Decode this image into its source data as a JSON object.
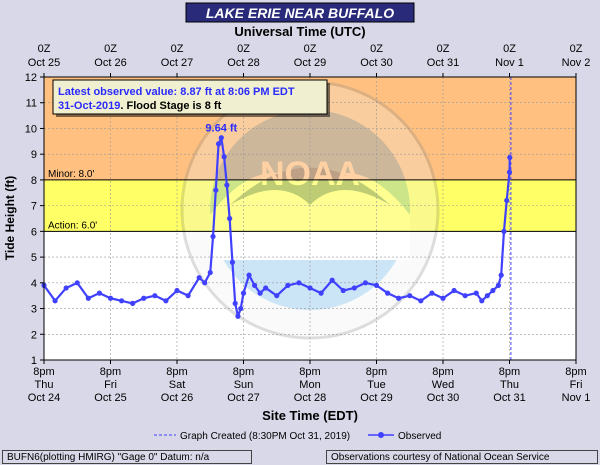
{
  "title": "LAKE ERIE NEAR BUFFALO",
  "top_axis_title": "Universal Time (UTC)",
  "bottom_axis_title": "Site Time (EDT)",
  "y_axis_title": "Tide Height (ft)",
  "info_box": {
    "line1": "Latest observed value: 8.87 ft at 8:06 PM EDT",
    "line2_date": "31-Oct-2019",
    "line2_flood": "Flood Stage is 8 ft"
  },
  "peak_label": "9.64 ft",
  "watermark": "NOAA NATIONAL OCEANIC AND ATMOSPHERIC ADMINISTRATION U.S. DEPARTMENT OF COMMERCE",
  "legend": {
    "graph_created": "Graph Created (8:30PM Oct 31, 2019)",
    "observed": "Observed"
  },
  "footer": {
    "left": "BUFN6(plotting HMIRG) \"Gage 0\" Datum: n/a",
    "right": "Observations courtesy of National Ocean Service"
  },
  "colors": {
    "moderate_band": "#ffc080",
    "minor_band": "#ffff66",
    "observed": "#4040ff",
    "background": "#d8d8e8",
    "title_bar": "#2a2a7a"
  },
  "chart_data": {
    "type": "line",
    "title": "LAKE ERIE NEAR BUFFALO",
    "xlabel": "Site Time (EDT)",
    "x2label": "Universal Time (UTC)",
    "ylabel": "Tide Height (ft)",
    "ylim": [
      1,
      12
    ],
    "yticks": [
      1,
      2,
      3,
      4,
      5,
      6,
      7,
      8,
      9,
      10,
      11,
      12
    ],
    "xlim": [
      "2019-10-24 20:00 EDT",
      "2019-11-01 20:00 EDT"
    ],
    "bottom_ticks": [
      {
        "line1": "8pm",
        "line2": "Thu",
        "line3": "Oct 24"
      },
      {
        "line1": "8pm",
        "line2": "Fri",
        "line3": "Oct 25"
      },
      {
        "line1": "8pm",
        "line2": "Sat",
        "line3": "Oct 26"
      },
      {
        "line1": "8pm",
        "line2": "Sun",
        "line3": "Oct 27"
      },
      {
        "line1": "8pm",
        "line2": "Mon",
        "line3": "Oct 28"
      },
      {
        "line1": "8pm",
        "line2": "Tue",
        "line3": "Oct 29"
      },
      {
        "line1": "8pm",
        "line2": "Wed",
        "line3": "Oct 30"
      },
      {
        "line1": "8pm",
        "line2": "Thu",
        "line3": "Oct 31"
      },
      {
        "line1": "8pm",
        "line2": "Fri",
        "line3": "Nov 1"
      }
    ],
    "top_ticks": [
      {
        "line1": "0Z",
        "line2": "Oct 25"
      },
      {
        "line1": "0Z",
        "line2": "Oct 26"
      },
      {
        "line1": "0Z",
        "line2": "Oct 27"
      },
      {
        "line1": "0Z",
        "line2": "Oct 28"
      },
      {
        "line1": "0Z",
        "line2": "Oct 29"
      },
      {
        "line1": "0Z",
        "line2": "Oct 30"
      },
      {
        "line1": "0Z",
        "line2": "Oct 31"
      },
      {
        "line1": "0Z",
        "line2": "Nov  1"
      },
      {
        "line1": "0Z",
        "line2": "Nov  2"
      }
    ],
    "thresholds": [
      {
        "label": "Minor: 8.0'",
        "value": 8.0
      },
      {
        "label": "Action: 6.0'",
        "value": 6.0
      }
    ],
    "bands": [
      {
        "from": 8,
        "to": 12,
        "color": "#ffc080"
      },
      {
        "from": 6,
        "to": 8,
        "color": "#ffff66"
      }
    ],
    "graph_created_at": "2019-10-31 20:30 EDT",
    "series": [
      {
        "name": "Observed",
        "color": "#4040ff",
        "x": [
          "2019-10-24 20:00",
          "2019-10-25 00:00",
          "2019-10-25 04:00",
          "2019-10-25 08:00",
          "2019-10-25 12:00",
          "2019-10-25 16:00",
          "2019-10-25 20:00",
          "2019-10-26 00:00",
          "2019-10-26 04:00",
          "2019-10-26 08:00",
          "2019-10-26 12:00",
          "2019-10-26 16:00",
          "2019-10-26 20:00",
          "2019-10-27 00:00",
          "2019-10-27 04:00",
          "2019-10-27 06:00",
          "2019-10-27 08:00",
          "2019-10-27 09:00",
          "2019-10-27 10:00",
          "2019-10-27 11:00",
          "2019-10-27 12:00",
          "2019-10-27 13:00",
          "2019-10-27 14:00",
          "2019-10-27 15:00",
          "2019-10-27 16:00",
          "2019-10-27 17:00",
          "2019-10-27 18:00",
          "2019-10-27 19:00",
          "2019-10-27 20:00",
          "2019-10-27 22:00",
          "2019-10-28 00:00",
          "2019-10-28 02:00",
          "2019-10-28 04:00",
          "2019-10-28 08:00",
          "2019-10-28 12:00",
          "2019-10-28 16:00",
          "2019-10-28 20:00",
          "2019-10-29 00:00",
          "2019-10-29 04:00",
          "2019-10-29 08:00",
          "2019-10-29 12:00",
          "2019-10-29 16:00",
          "2019-10-29 20:00",
          "2019-10-30 00:00",
          "2019-10-30 04:00",
          "2019-10-30 08:00",
          "2019-10-30 12:00",
          "2019-10-30 16:00",
          "2019-10-30 20:00",
          "2019-10-31 00:00",
          "2019-10-31 04:00",
          "2019-10-31 08:00",
          "2019-10-31 10:00",
          "2019-10-31 12:00",
          "2019-10-31 14:00",
          "2019-10-31 16:00",
          "2019-10-31 17:00",
          "2019-10-31 18:00",
          "2019-10-31 19:00",
          "2019-10-31 20:00",
          "2019-10-31 20:06"
        ],
        "values": [
          3.9,
          3.3,
          3.8,
          4.0,
          3.4,
          3.6,
          3.4,
          3.3,
          3.2,
          3.4,
          3.5,
          3.3,
          3.7,
          3.5,
          4.2,
          4.0,
          4.4,
          5.8,
          7.6,
          9.4,
          9.64,
          8.9,
          7.8,
          6.5,
          4.8,
          3.2,
          2.7,
          3.0,
          3.6,
          4.3,
          3.9,
          3.6,
          3.8,
          3.5,
          3.9,
          4.0,
          3.8,
          3.6,
          4.1,
          3.7,
          3.8,
          4.0,
          3.9,
          3.6,
          3.4,
          3.5,
          3.3,
          3.6,
          3.4,
          3.7,
          3.5,
          3.6,
          3.3,
          3.5,
          3.7,
          3.9,
          4.3,
          6.0,
          7.2,
          8.3,
          8.87
        ]
      }
    ]
  }
}
